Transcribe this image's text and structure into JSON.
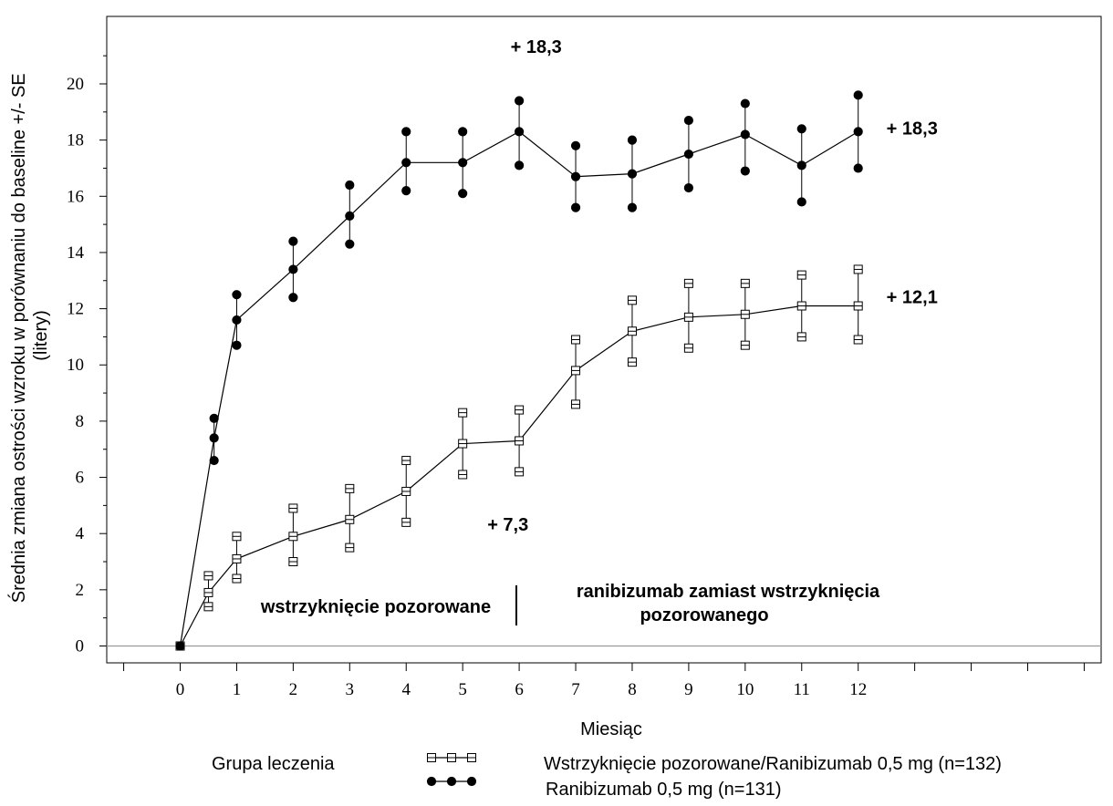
{
  "chart_data": {
    "type": "line",
    "title": "",
    "xlabel": "Miesiąc",
    "ylabel_lines": [
      "Średnia zmiana ostrości wzroku  w porównaniu do baseline +/- SE",
      "(litery)"
    ],
    "x_ticks": [
      0,
      1,
      2,
      3,
      4,
      5,
      6,
      7,
      8,
      9,
      10,
      11,
      12
    ],
    "y_ticks": [
      0,
      2,
      4,
      6,
      8,
      10,
      12,
      14,
      16,
      18,
      20
    ],
    "xlim": [
      -1.3,
      16.3
    ],
    "ylim": [
      -0.6,
      22.4
    ],
    "grid": false,
    "series": [
      {
        "name": "Wstrzyknięcie pozorowane/Ranibizumab 0,5 mg (n=132)",
        "marker": "square",
        "x": [
          0,
          0.5,
          1,
          2,
          3,
          4,
          5,
          6,
          7,
          8,
          9,
          10,
          11,
          12
        ],
        "y": [
          0,
          1.9,
          3.1,
          3.9,
          4.5,
          5.5,
          7.2,
          7.3,
          9.8,
          11.2,
          11.7,
          11.8,
          12.1,
          12.1
        ],
        "upper": [
          0,
          2.5,
          3.9,
          4.9,
          5.6,
          6.6,
          8.3,
          8.4,
          10.9,
          12.3,
          12.9,
          12.9,
          13.2,
          13.4
        ],
        "lower": [
          0,
          1.4,
          2.4,
          3.0,
          3.5,
          4.4,
          6.1,
          6.2,
          8.6,
          10.1,
          10.6,
          10.7,
          11.0,
          10.9
        ]
      },
      {
        "name": "Ranibizumab 0,5 mg (n=131)",
        "marker": "circle",
        "x": [
          0,
          0.6,
          1,
          2,
          3,
          4,
          5,
          6,
          7,
          8,
          9,
          10,
          11,
          12
        ],
        "y": [
          0,
          7.4,
          11.6,
          13.4,
          15.3,
          17.2,
          17.2,
          18.3,
          16.7,
          16.8,
          17.5,
          18.2,
          17.1,
          18.3
        ],
        "upper": [
          0,
          8.1,
          12.5,
          14.4,
          16.4,
          18.3,
          18.3,
          19.4,
          17.8,
          18.0,
          18.7,
          19.3,
          18.4,
          19.6
        ],
        "lower": [
          0,
          6.6,
          10.7,
          12.4,
          14.3,
          16.2,
          16.1,
          17.1,
          15.6,
          15.6,
          16.3,
          16.9,
          15.8,
          17.0
        ]
      }
    ],
    "annotations": [
      {
        "text": "+ 18,3",
        "x": 6.3,
        "y": 21.1,
        "anchor": "middle"
      },
      {
        "text": "+ 18,3",
        "x": 12.5,
        "y": 18.2,
        "anchor": "start"
      },
      {
        "text": "+ 12,1",
        "x": 12.5,
        "y": 12.2,
        "anchor": "start"
      },
      {
        "text": "+ 7,3",
        "x": 5.8,
        "y": 4.1,
        "anchor": "middle"
      }
    ],
    "phase_labels": {
      "left": [
        "wstrzyknięcie pozorowane"
      ],
      "right": [
        "ranibizumab zamiast wstrzyknięcia",
        "pozorowanego"
      ],
      "divider_x": 5.95
    },
    "legend": {
      "title": "Grupa leczenia",
      "placement": "bottom"
    },
    "colors": {
      "line": "#000000",
      "zero_line": "#9a9a9a",
      "square_fill": "#ffffff",
      "circle_fill": "#000000"
    }
  }
}
